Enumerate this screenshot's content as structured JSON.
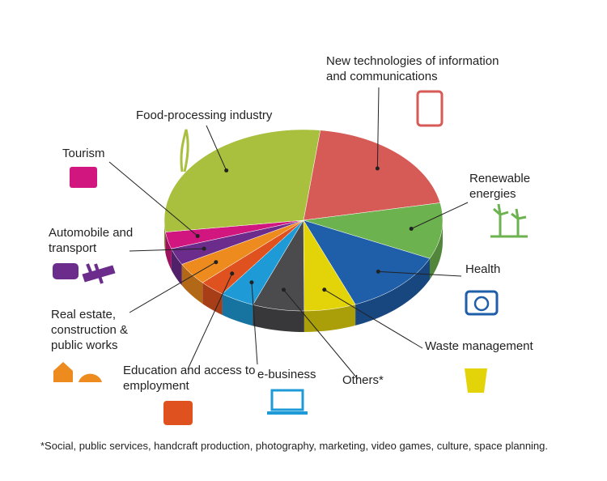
{
  "chart_data": {
    "type": "pie",
    "categories": [
      "New technologies of information and communications",
      "Renewable energies",
      "Health",
      "Waste management",
      "Others*",
      "e-business",
      "Education and access to employment",
      "Real estate, construction & public works",
      "Automobile and transport",
      "Tourism",
      "Food-processing industry"
    ],
    "values": [
      20,
      10,
      12,
      6,
      6,
      4,
      3,
      4,
      3,
      3,
      29
    ],
    "colors": [
      "#d65a55",
      "#6cb24f",
      "#1f5ea8",
      "#e3d40a",
      "#4b4b4d",
      "#1e9bd7",
      "#df5220",
      "#ee8b1e",
      "#6b2c8c",
      "#d1177f",
      "#a9bf3e"
    ],
    "footnote": "*Social, public services, handcraft production, photography, marketing, video games, culture, space planning."
  }
}
